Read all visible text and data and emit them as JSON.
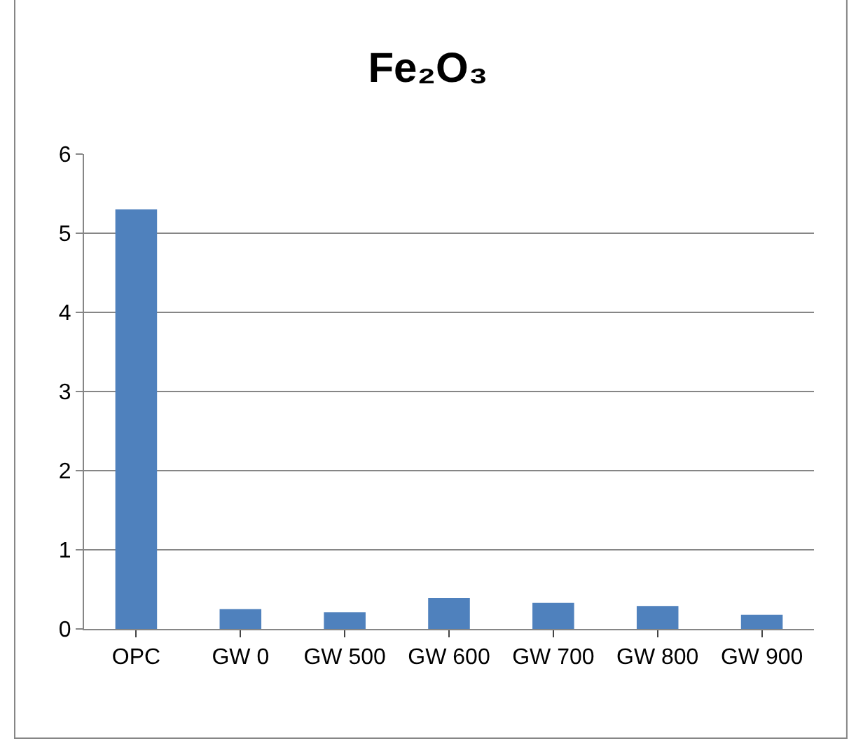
{
  "chart_data": {
    "type": "bar",
    "title": "Fe₂O₃",
    "categories": [
      "OPC",
      "GW 0",
      "GW 500",
      "GW 600",
      "GW 700",
      "GW 800",
      "GW 900"
    ],
    "values": [
      5.3,
      0.25,
      0.21,
      0.39,
      0.33,
      0.29,
      0.18
    ],
    "color": "#4f81bd",
    "ylim": [
      0,
      6
    ],
    "yticks": [
      0,
      1,
      2,
      3,
      4,
      5,
      6
    ],
    "grid": "y"
  }
}
